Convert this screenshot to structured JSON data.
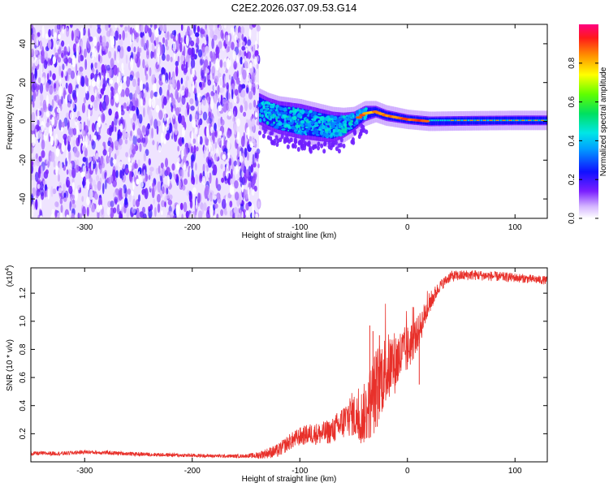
{
  "title": "C2E2.2026.037.09.53.G14",
  "chart_data": [
    {
      "type": "heatmap",
      "xlabel": "Height of straight line (km)",
      "ylabel": "Frequency (Hz)",
      "xlim": [
        -350,
        130
      ],
      "ylim": [
        -50,
        50
      ],
      "xticks": [
        -300,
        -200,
        -100,
        0,
        100
      ],
      "yticks": [
        -40,
        -20,
        0,
        20,
        40
      ],
      "colorbar": {
        "label": "Normalized spectral amplitude",
        "range": [
          0,
          1
        ],
        "ticks": [
          0.0,
          0.2,
          0.4,
          0.6,
          0.8
        ]
      },
      "noise_region_x": [
        -350,
        -138
      ],
      "signal_center_line": [
        {
          "x": -140,
          "y": 7
        },
        {
          "x": -130,
          "y": 4
        },
        {
          "x": -120,
          "y": 2
        },
        {
          "x": -110,
          "y": 1
        },
        {
          "x": -100,
          "y": 0
        },
        {
          "x": -90,
          "y": -1
        },
        {
          "x": -80,
          "y": -2
        },
        {
          "x": -70,
          "y": -3
        },
        {
          "x": -60,
          "y": -2
        },
        {
          "x": -50,
          "y": 0
        },
        {
          "x": -40,
          "y": 4
        },
        {
          "x": -30,
          "y": 5
        },
        {
          "x": -20,
          "y": 3
        },
        {
          "x": -10,
          "y": 2
        },
        {
          "x": 0,
          "y": 1
        },
        {
          "x": 20,
          "y": 0
        },
        {
          "x": 60,
          "y": 0.3
        },
        {
          "x": 100,
          "y": 0.5
        },
        {
          "x": 130,
          "y": 0.5
        }
      ],
      "signal_halfwidth": [
        {
          "x": -140,
          "y": 8
        },
        {
          "x": -100,
          "y": 9
        },
        {
          "x": -70,
          "y": 8
        },
        {
          "x": -50,
          "y": 5
        },
        {
          "x": -30,
          "y": 3
        },
        {
          "x": 0,
          "y": 2.5
        },
        {
          "x": 130,
          "y": 2.5
        }
      ]
    },
    {
      "type": "line",
      "xlabel": "Height of straight line (km)",
      "ylabel": "SNR (10 * v/v)",
      "y_multiplier": "(x10",
      "y_multiplier_exp": "4",
      "y_multiplier_close": ")",
      "xlim": [
        -350,
        130
      ],
      "ylim": [
        0,
        1.38
      ],
      "xticks": [
        -300,
        -200,
        -100,
        0,
        100
      ],
      "yticks": [
        0.2,
        0.4,
        0.6,
        0.8,
        1.0,
        1.2
      ],
      "color": "#e8302a",
      "series": [
        {
          "points": [
            {
              "x": -350,
              "y": 0.06
            },
            {
              "x": -320,
              "y": 0.06
            },
            {
              "x": -300,
              "y": 0.07
            },
            {
              "x": -280,
              "y": 0.065
            },
            {
              "x": -250,
              "y": 0.055
            },
            {
              "x": -200,
              "y": 0.045
            },
            {
              "x": -160,
              "y": 0.04
            },
            {
              "x": -140,
              "y": 0.045
            },
            {
              "x": -120,
              "y": 0.08
            },
            {
              "x": -110,
              "y": 0.14
            },
            {
              "x": -100,
              "y": 0.18
            },
            {
              "x": -90,
              "y": 0.2
            },
            {
              "x": -80,
              "y": 0.2
            },
            {
              "x": -70,
              "y": 0.22
            },
            {
              "x": -60,
              "y": 0.28
            },
            {
              "x": -52,
              "y": 0.34
            },
            {
              "x": -45,
              "y": 0.3
            },
            {
              "x": -38,
              "y": 0.36
            },
            {
              "x": -30,
              "y": 0.5
            },
            {
              "x": -25,
              "y": 0.6
            },
            {
              "x": -20,
              "y": 0.65
            },
            {
              "x": -10,
              "y": 0.72
            },
            {
              "x": 0,
              "y": 0.8
            },
            {
              "x": 10,
              "y": 0.92
            },
            {
              "x": 20,
              "y": 1.12
            },
            {
              "x": 30,
              "y": 1.25
            },
            {
              "x": 40,
              "y": 1.32
            },
            {
              "x": 60,
              "y": 1.33
            },
            {
              "x": 80,
              "y": 1.32
            },
            {
              "x": 100,
              "y": 1.31
            },
            {
              "x": 115,
              "y": 1.3
            },
            {
              "x": 130,
              "y": 1.29
            }
          ],
          "noise": [
            {
              "x": -350,
              "y": 0.015
            },
            {
              "x": -150,
              "y": 0.012
            },
            {
              "x": -120,
              "y": 0.05
            },
            {
              "x": -70,
              "y": 0.09
            },
            {
              "x": -45,
              "y": 0.18
            },
            {
              "x": -30,
              "y": 0.3
            },
            {
              "x": -10,
              "y": 0.22
            },
            {
              "x": 10,
              "y": 0.12
            },
            {
              "x": 30,
              "y": 0.04
            },
            {
              "x": 130,
              "y": 0.03
            }
          ]
        }
      ],
      "spikes": [
        {
          "x": -35,
          "y": 0.97
        },
        {
          "x": -32,
          "y": 0.93
        },
        {
          "x": -28,
          "y": 0.25
        },
        {
          "x": -26,
          "y": 0.9
        },
        {
          "x": 11,
          "y": 0.55
        }
      ]
    }
  ]
}
